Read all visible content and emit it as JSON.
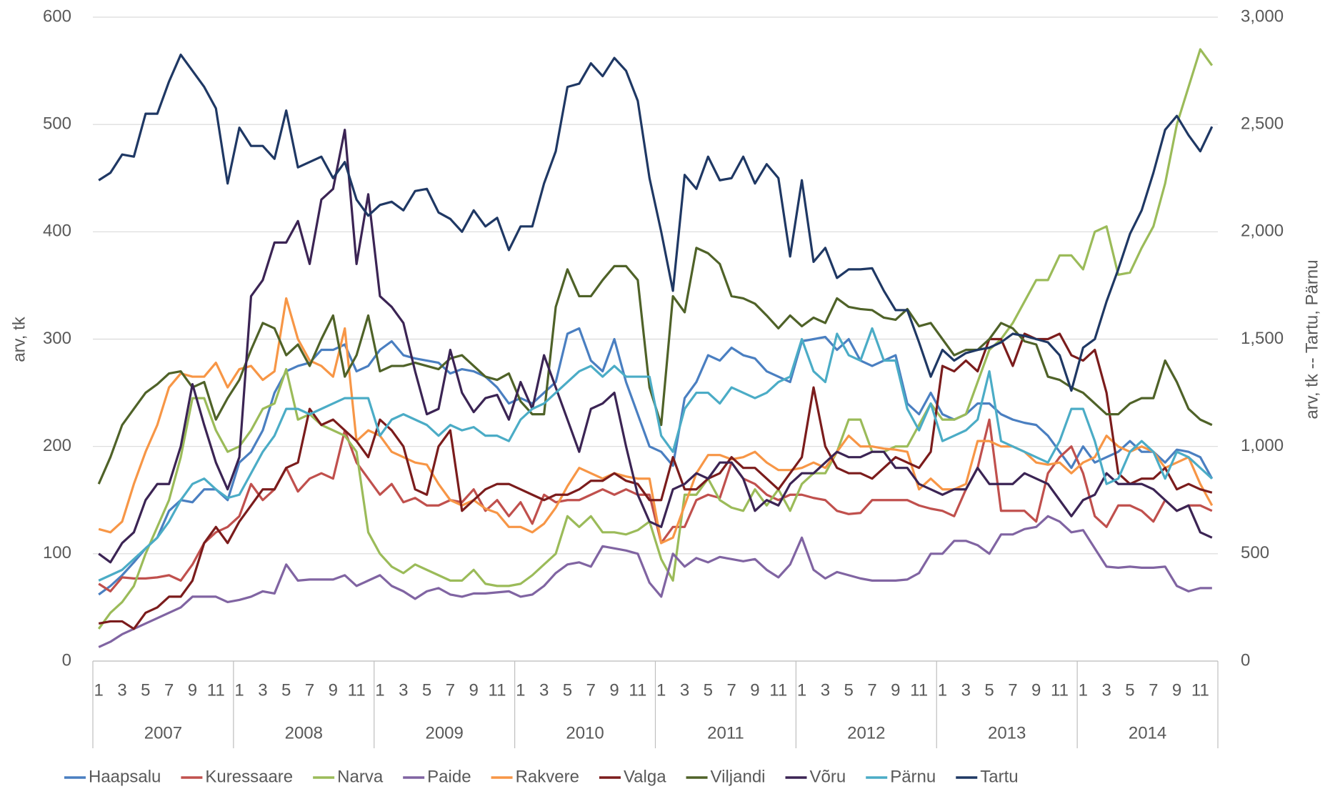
{
  "chart_data": {
    "type": "line",
    "ylabel": "arv, tk",
    "y2label": "arv, tk -- Tartu, Pärnu",
    "categories": [
      "1",
      null,
      "3",
      null,
      "5",
      null,
      "7",
      null,
      "9",
      null,
      "11",
      null,
      "1",
      null,
      "3",
      null,
      "5",
      null,
      "7",
      null,
      "9",
      null,
      "11",
      null,
      "1",
      null,
      "3",
      null,
      "5",
      null,
      "7",
      null,
      "9",
      null,
      "11",
      null,
      "1",
      null,
      "3",
      null,
      "5",
      null,
      "7",
      null,
      "9",
      null,
      "11",
      null,
      "1",
      null,
      "3",
      null,
      "5",
      null,
      "7",
      null,
      "9",
      null,
      "11",
      null,
      "1",
      null,
      "3",
      null,
      "5",
      null,
      "7",
      null,
      "9",
      null,
      "11",
      null,
      "1",
      null,
      "3",
      null,
      "5",
      null,
      "7",
      null,
      "9",
      null,
      "11",
      null,
      "1",
      null,
      "3",
      null,
      "5",
      null,
      "7",
      null,
      "9",
      null,
      "11",
      null
    ],
    "years": [
      "2007",
      "2008",
      "2009",
      "2010",
      "2011",
      "2012",
      "2013",
      "2014"
    ],
    "ylim": [
      0,
      600
    ],
    "yticks": [
      0,
      100,
      200,
      300,
      400,
      500,
      600
    ],
    "y2lim": [
      0,
      3000
    ],
    "y2ticks": [
      0,
      500,
      {
        "value": 1000,
        "label": "1,000"
      },
      {
        "value": 1500,
        "label": "1,500"
      },
      {
        "value": 2000,
        "label": "2,000"
      },
      {
        "value": 2500,
        "label": "2,500"
      },
      {
        "value": 3000,
        "label": "3,000"
      }
    ],
    "grid": true,
    "legend": "bottom",
    "series": [
      {
        "name": "Haapsalu",
        "color": "#4a7fc1",
        "values": [
          62,
          70,
          80,
          92,
          105,
          115,
          140,
          150,
          148,
          160,
          160,
          150,
          185,
          195,
          215,
          250,
          270,
          275,
          278,
          290,
          290,
          295,
          270,
          275,
          290,
          298,
          285,
          282,
          280,
          278,
          268,
          272,
          270,
          265,
          255,
          240,
          245,
          240,
          250,
          260,
          305,
          310,
          280,
          270,
          300,
          260,
          230,
          200,
          195,
          182,
          245,
          260,
          285,
          280,
          292,
          285,
          282,
          270,
          265,
          260,
          298,
          300,
          302,
          290,
          300,
          280,
          275,
          280,
          285,
          240,
          230,
          250,
          230,
          225,
          230,
          240,
          240,
          230,
          225,
          222,
          220,
          210,
          195,
          180,
          200,
          185,
          190,
          195,
          205,
          195,
          195,
          185,
          197,
          195,
          190,
          170
        ]
      },
      {
        "name": "Kuressaare",
        "color": "#c0504d",
        "values": [
          72,
          65,
          78,
          77,
          77,
          78,
          80,
          75,
          90,
          110,
          120,
          125,
          135,
          165,
          150,
          160,
          180,
          158,
          170,
          175,
          170,
          215,
          185,
          170,
          155,
          165,
          148,
          152,
          145,
          145,
          150,
          148,
          160,
          140,
          150,
          135,
          148,
          128,
          155,
          148,
          150,
          150,
          155,
          160,
          155,
          160,
          155,
          155,
          110,
          125,
          125,
          150,
          155,
          152,
          185,
          170,
          165,
          155,
          150,
          155,
          155,
          152,
          150,
          140,
          137,
          138,
          150,
          150,
          150,
          150,
          145,
          142,
          140,
          135,
          160,
          180,
          225,
          140,
          140,
          140,
          130,
          175,
          190,
          200,
          175,
          135,
          125,
          145,
          145,
          140,
          130,
          150,
          140,
          145,
          145,
          140
        ]
      },
      {
        "name": "Narva",
        "color": "#9bbb59",
        "values": [
          30,
          45,
          55,
          70,
          100,
          125,
          150,
          190,
          245,
          245,
          215,
          195,
          200,
          215,
          235,
          240,
          272,
          225,
          230,
          220,
          215,
          210,
          195,
          120,
          100,
          88,
          82,
          90,
          85,
          80,
          75,
          75,
          85,
          72,
          70,
          70,
          72,
          80,
          90,
          100,
          135,
          125,
          135,
          120,
          120,
          118,
          122,
          130,
          95,
          75,
          155,
          155,
          170,
          150,
          143,
          140,
          160,
          145,
          160,
          140,
          165,
          175,
          175,
          195,
          225,
          225,
          195,
          195,
          200,
          200,
          220,
          240,
          225,
          225,
          230,
          260,
          290,
          300,
          315,
          335,
          355,
          355,
          378,
          378,
          365,
          400,
          405,
          360,
          362,
          385,
          405,
          445,
          500,
          535,
          570,
          555
        ]
      },
      {
        "name": "Paide",
        "color": "#8064a2",
        "values": [
          13,
          18,
          25,
          30,
          35,
          40,
          45,
          50,
          60,
          60,
          60,
          55,
          57,
          60,
          65,
          63,
          90,
          75,
          76,
          76,
          76,
          80,
          70,
          75,
          80,
          70,
          65,
          58,
          65,
          68,
          62,
          60,
          63,
          63,
          64,
          65,
          60,
          62,
          70,
          82,
          90,
          92,
          88,
          107,
          105,
          103,
          100,
          73,
          60,
          100,
          88,
          96,
          92,
          97,
          95,
          93,
          95,
          85,
          78,
          90,
          115,
          85,
          77,
          83,
          80,
          77,
          75,
          75,
          75,
          76,
          82,
          100,
          100,
          112,
          112,
          108,
          100,
          118,
          118,
          123,
          125,
          135,
          130,
          120,
          122,
          105,
          88,
          87,
          88,
          87,
          87,
          88,
          70,
          65,
          68,
          68
        ]
      },
      {
        "name": "Rakvere",
        "color": "#f79646",
        "values": [
          123,
          120,
          130,
          165,
          195,
          220,
          255,
          268,
          265,
          265,
          278,
          255,
          272,
          275,
          262,
          270,
          338,
          300,
          280,
          275,
          265,
          310,
          205,
          215,
          210,
          195,
          190,
          185,
          183,
          165,
          150,
          145,
          150,
          142,
          138,
          125,
          125,
          120,
          128,
          143,
          163,
          180,
          175,
          170,
          175,
          172,
          170,
          170,
          110,
          115,
          145,
          175,
          192,
          192,
          188,
          190,
          195,
          185,
          178,
          178,
          180,
          185,
          180,
          195,
          210,
          200,
          200,
          198,
          197,
          195,
          160,
          170,
          160,
          160,
          165,
          205,
          205,
          200,
          200,
          195,
          185,
          183,
          185,
          175,
          185,
          190,
          210,
          200,
          195,
          200,
          195,
          180,
          185,
          190,
          165,
          145
        ]
      },
      {
        "name": "Valga",
        "color": "#7b1c1c",
        "values": [
          35,
          37,
          37,
          30,
          45,
          50,
          60,
          60,
          75,
          110,
          125,
          110,
          130,
          145,
          160,
          160,
          180,
          185,
          235,
          220,
          225,
          215,
          205,
          190,
          225,
          215,
          200,
          160,
          155,
          200,
          215,
          140,
          150,
          160,
          165,
          165,
          160,
          155,
          150,
          155,
          155,
          160,
          168,
          168,
          175,
          168,
          165,
          150,
          150,
          190,
          160,
          160,
          170,
          175,
          190,
          180,
          180,
          170,
          160,
          175,
          190,
          255,
          200,
          180,
          175,
          175,
          170,
          180,
          190,
          185,
          180,
          195,
          275,
          270,
          280,
          270,
          300,
          300,
          275,
          305,
          300,
          300,
          305,
          285,
          280,
          290,
          250,
          175,
          165,
          170,
          170,
          180,
          160,
          165,
          160,
          157
        ]
      },
      {
        "name": "Viljandi",
        "color": "#4f6228",
        "values": [
          165,
          190,
          220,
          235,
          250,
          258,
          268,
          270,
          255,
          260,
          225,
          245,
          262,
          290,
          315,
          310,
          285,
          295,
          275,
          300,
          322,
          265,
          285,
          322,
          270,
          275,
          275,
          278,
          275,
          272,
          282,
          285,
          275,
          265,
          262,
          268,
          242,
          230,
          230,
          330,
          365,
          340,
          340,
          355,
          368,
          368,
          355,
          255,
          220,
          340,
          325,
          385,
          380,
          370,
          340,
          338,
          333,
          322,
          310,
          322,
          312,
          320,
          315,
          338,
          330,
          328,
          327,
          320,
          318,
          328,
          312,
          315,
          300,
          285,
          290,
          290,
          300,
          315,
          310,
          298,
          295,
          265,
          262,
          255,
          250,
          240,
          230,
          230,
          240,
          245,
          245,
          280,
          260,
          235,
          225,
          220
        ]
      },
      {
        "name": "Võru",
        "color": "#3b2454",
        "values": [
          100,
          92,
          110,
          120,
          150,
          165,
          165,
          200,
          258,
          220,
          185,
          160,
          190,
          340,
          355,
          390,
          390,
          410,
          370,
          430,
          440,
          495,
          370,
          435,
          340,
          330,
          315,
          270,
          230,
          235,
          290,
          250,
          232,
          245,
          248,
          225,
          260,
          235,
          285,
          255,
          225,
          195,
          235,
          240,
          250,
          200,
          155,
          130,
          125,
          160,
          165,
          175,
          170,
          185,
          185,
          170,
          140,
          150,
          145,
          165,
          175,
          175,
          185,
          195,
          190,
          190,
          195,
          195,
          180,
          180,
          165,
          160,
          155,
          160,
          160,
          180,
          165,
          165,
          165,
          175,
          170,
          165,
          150,
          135,
          150,
          155,
          175,
          165,
          165,
          165,
          160,
          150,
          140,
          145,
          120,
          115
        ]
      },
      {
        "name": "Pärnu",
        "color": "#4bacc6",
        "axis": "y2",
        "values": [
          375,
          400,
          425,
          475,
          525,
          575,
          650,
          750,
          825,
          850,
          800,
          760,
          775,
          875,
          975,
          1050,
          1175,
          1175,
          1150,
          1175,
          1200,
          1225,
          1225,
          1225,
          1050,
          1125,
          1150,
          1125,
          1100,
          1050,
          1100,
          1075,
          1090,
          1050,
          1050,
          1025,
          1125,
          1175,
          1200,
          1250,
          1300,
          1350,
          1375,
          1325,
          1375,
          1325,
          1325,
          1325,
          1050,
          975,
          1175,
          1250,
          1250,
          1200,
          1275,
          1250,
          1225,
          1250,
          1300,
          1325,
          1500,
          1350,
          1300,
          1525,
          1425,
          1400,
          1550,
          1400,
          1400,
          1175,
          1075,
          1200,
          1025,
          1050,
          1075,
          1125,
          1350,
          1025,
          1000,
          975,
          950,
          925,
          1025,
          1175,
          1175,
          1025,
          825,
          850,
          975,
          1025,
          975,
          850,
          975,
          950,
          900,
          850
        ]
      },
      {
        "name": "Tartu",
        "color": "#1f3864",
        "axis": "y2",
        "values": [
          2240,
          2275,
          2360,
          2350,
          2550,
          2550,
          2700,
          2825,
          2750,
          2675,
          2575,
          2225,
          2485,
          2400,
          2400,
          2340,
          2565,
          2300,
          2325,
          2350,
          2250,
          2325,
          2150,
          2075,
          2125,
          2140,
          2100,
          2190,
          2200,
          2090,
          2060,
          2000,
          2100,
          2025,
          2065,
          1915,
          2025,
          2025,
          2225,
          2375,
          2675,
          2690,
          2785,
          2725,
          2810,
          2750,
          2610,
          2250,
          2000,
          1725,
          2265,
          2200,
          2350,
          2240,
          2250,
          2350,
          2225,
          2315,
          2250,
          1885,
          2240,
          1860,
          1925,
          1785,
          1825,
          1825,
          1830,
          1725,
          1635,
          1635,
          1485,
          1325,
          1450,
          1400,
          1435,
          1450,
          1460,
          1485,
          1525,
          1515,
          1500,
          1485,
          1425,
          1260,
          1460,
          1500,
          1675,
          1825,
          1990,
          2100,
          2275,
          2475,
          2540,
          2450,
          2375,
          2490
        ]
      }
    ]
  }
}
